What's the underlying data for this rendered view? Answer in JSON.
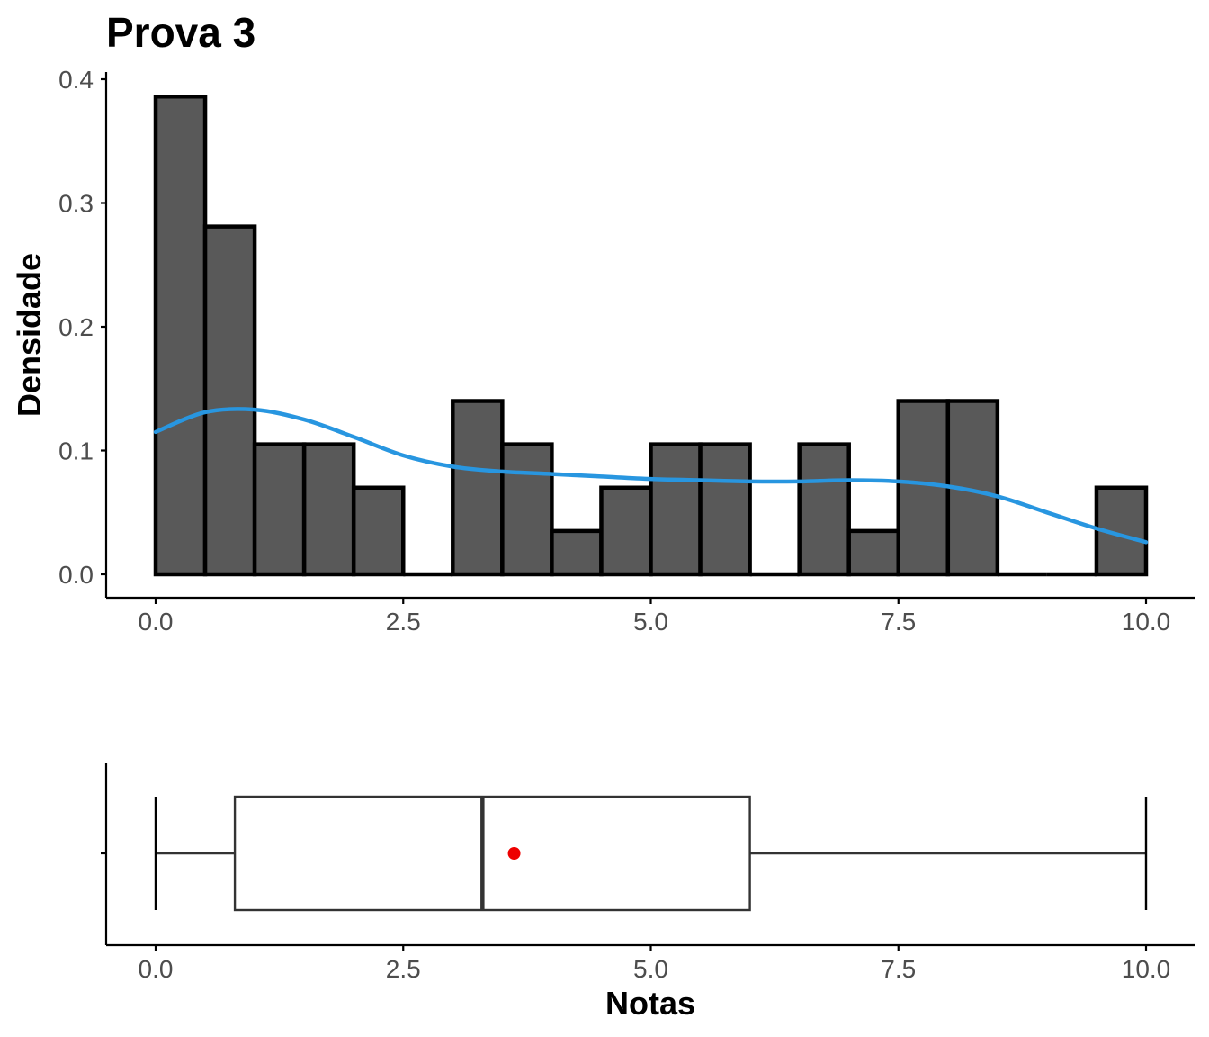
{
  "chart_data": [
    {
      "type": "histogram",
      "title": "Prova 3",
      "xlabel": "",
      "ylabel": "Densidade",
      "xlim": [
        -0.25,
        10.25
      ],
      "ylim": [
        0,
        0.4
      ],
      "x_ticks": [
        0,
        2.5,
        5,
        7.5,
        10
      ],
      "x_tick_labels": [
        "0.0",
        "2.5",
        "5.0",
        "7.5",
        "10.0"
      ],
      "y_ticks": [
        0,
        0.1,
        0.2,
        0.3,
        0.4
      ],
      "y_tick_labels": [
        "0.0",
        "0.1",
        "0.2",
        "0.3",
        "0.4"
      ],
      "grid": false,
      "bin_width": 0.5,
      "bins": [
        {
          "start": 0.0,
          "end": 0.5,
          "density": 0.386
        },
        {
          "start": 0.5,
          "end": 1.0,
          "density": 0.281
        },
        {
          "start": 1.0,
          "end": 1.5,
          "density": 0.105
        },
        {
          "start": 1.5,
          "end": 2.0,
          "density": 0.105
        },
        {
          "start": 2.0,
          "end": 2.5,
          "density": 0.07
        },
        {
          "start": 2.5,
          "end": 3.0,
          "density": 0.0
        },
        {
          "start": 3.0,
          "end": 3.5,
          "density": 0.14
        },
        {
          "start": 3.5,
          "end": 4.0,
          "density": 0.105
        },
        {
          "start": 4.0,
          "end": 4.5,
          "density": 0.035
        },
        {
          "start": 4.5,
          "end": 5.0,
          "density": 0.07
        },
        {
          "start": 5.0,
          "end": 5.5,
          "density": 0.105
        },
        {
          "start": 5.5,
          "end": 6.0,
          "density": 0.105
        },
        {
          "start": 6.0,
          "end": 6.5,
          "density": 0.0
        },
        {
          "start": 6.5,
          "end": 7.0,
          "density": 0.105
        },
        {
          "start": 7.0,
          "end": 7.5,
          "density": 0.035
        },
        {
          "start": 7.5,
          "end": 8.0,
          "density": 0.14
        },
        {
          "start": 8.0,
          "end": 8.5,
          "density": 0.14
        },
        {
          "start": 8.5,
          "end": 9.0,
          "density": 0.0
        },
        {
          "start": 9.0,
          "end": 9.5,
          "density": 0.0
        },
        {
          "start": 9.5,
          "end": 10.0,
          "density": 0.07
        }
      ],
      "bar_fill": "#595959",
      "bar_outline": "#000000",
      "density_curve": {
        "color": "#2896e0",
        "x": [
          0,
          0.5,
          1,
          1.5,
          2,
          2.5,
          3,
          3.5,
          4,
          4.5,
          5,
          5.5,
          6,
          6.5,
          7,
          7.5,
          8,
          8.5,
          9,
          9.5,
          10
        ],
        "y": [
          0.115,
          0.131,
          0.133,
          0.125,
          0.111,
          0.096,
          0.087,
          0.083,
          0.081,
          0.079,
          0.077,
          0.076,
          0.075,
          0.075,
          0.076,
          0.075,
          0.071,
          0.063,
          0.05,
          0.037,
          0.026
        ]
      }
    },
    {
      "type": "boxplot",
      "xlabel": "Notas",
      "xlim": [
        -0.25,
        10.25
      ],
      "x_ticks": [
        0,
        2.5,
        5,
        7.5,
        10
      ],
      "x_tick_labels": [
        "0.0",
        "2.5",
        "5.0",
        "7.5",
        "10.0"
      ],
      "min": 0.0,
      "q1": 0.8,
      "median": 3.3,
      "q3": 6.0,
      "max": 10.0,
      "mean": 3.62,
      "box_color": "#333333",
      "mean_color": "#ee0000"
    }
  ]
}
